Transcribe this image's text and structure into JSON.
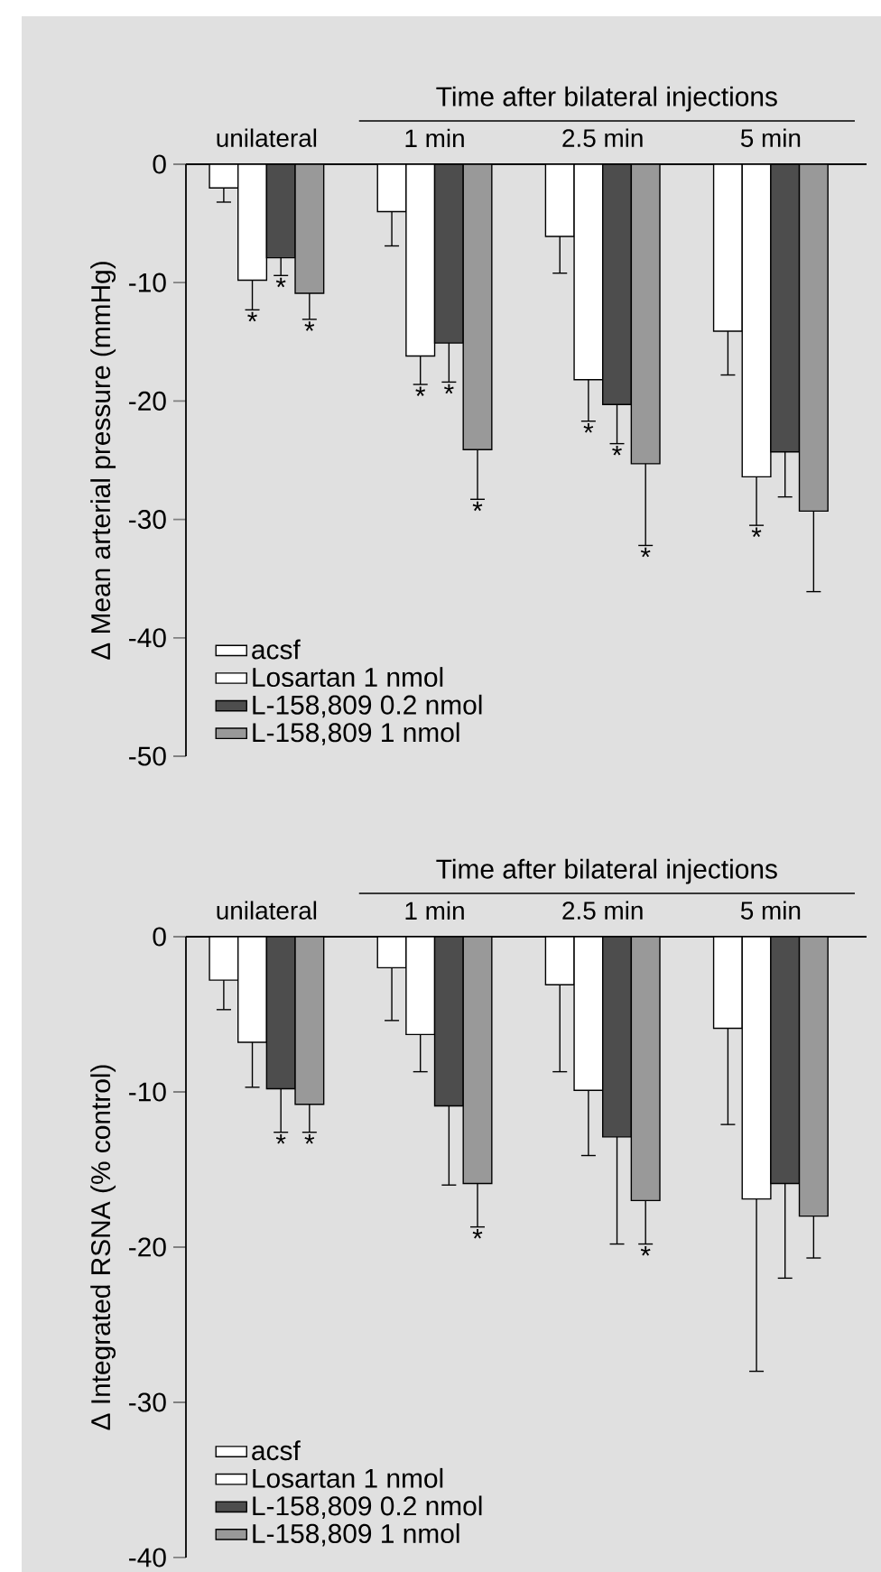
{
  "chart_data": [
    {
      "type": "bar",
      "ylabel": "Δ Mean arterial pressure (mmHg)",
      "annotations": [
        "Time after bilateral injections"
      ],
      "categories": [
        "unilateral",
        "1 min",
        "2.5 min",
        "5 min"
      ],
      "series": [
        {
          "name": "acsf",
          "color": "#ffffff",
          "values": [
            -2.0,
            -4.0,
            -6.1,
            -14.1
          ],
          "errors": [
            [
              -3.2,
              -2.0
            ],
            [
              -6.9,
              -4.0
            ],
            [
              -9.2,
              -6.1
            ],
            [
              -17.8,
              -14.1
            ]
          ]
        },
        {
          "name": "Losartan 1 nmol",
          "color": "#ffffff",
          "values": [
            -9.8,
            -16.2,
            -18.2,
            -26.4
          ],
          "errors": [
            [
              -12.3,
              -9.8
            ],
            [
              -18.6,
              -16.2
            ],
            [
              -21.7,
              -18.2
            ],
            [
              -30.5,
              -26.4
            ]
          ],
          "value_labels": [
            "*",
            "*",
            "*",
            "*"
          ]
        },
        {
          "name": "L-158,809 0.2 nmol",
          "color": "#4d4d4d",
          "values": [
            -7.9,
            -15.1,
            -20.3,
            -24.3
          ],
          "errors": [
            [
              -9.4,
              -7.9
            ],
            [
              -18.4,
              -15.1
            ],
            [
              -23.6,
              -20.3
            ],
            [
              -28.1,
              -24.3
            ]
          ],
          "value_labels": [
            "*",
            "*",
            "*",
            null
          ]
        },
        {
          "name": "L-158,809 1 nmol",
          "color": "#999999",
          "values": [
            -10.9,
            -24.1,
            -25.3,
            -29.3
          ],
          "errors": [
            [
              -13.1,
              -10.9
            ],
            [
              -28.3,
              -24.1
            ],
            [
              -32.2,
              -25.3
            ],
            [
              -36.1,
              -29.3
            ]
          ],
          "value_labels": [
            "*",
            "*",
            "*",
            null
          ]
        }
      ],
      "ylim": [
        -50,
        0
      ],
      "yticks": [
        -50,
        -40,
        -30,
        -20,
        -10,
        0
      ],
      "legend": "bottom left"
    },
    {
      "type": "bar",
      "ylabel": "Δ Integrated RSNA (% control)",
      "annotations": [
        "Time after bilateral injections"
      ],
      "categories": [
        "unilateral",
        "1 min",
        "2.5 min",
        "5 min"
      ],
      "series": [
        {
          "name": "acsf",
          "color": "#ffffff",
          "values": [
            -2.8,
            -2.0,
            -3.1,
            -5.9
          ],
          "errors": [
            [
              -4.7,
              -2.8
            ],
            [
              -5.4,
              -2.0
            ],
            [
              -8.7,
              -3.1
            ],
            [
              -12.1,
              -5.9
            ]
          ]
        },
        {
          "name": "Losartan 1 nmol",
          "color": "#ffffff",
          "values": [
            -6.8,
            -6.3,
            -9.9,
            -16.9
          ],
          "errors": [
            [
              -9.7,
              -6.8
            ],
            [
              -8.7,
              -6.3
            ],
            [
              -14.1,
              -9.9
            ],
            [
              -28.0,
              -16.9
            ]
          ]
        },
        {
          "name": "L-158,809 0.2 nmol",
          "color": "#4d4d4d",
          "values": [
            -9.8,
            -10.9,
            -12.9,
            -15.9
          ],
          "errors": [
            [
              -12.6,
              -9.8
            ],
            [
              -16.0,
              -10.9
            ],
            [
              -19.8,
              -12.9
            ],
            [
              -22.0,
              -15.9
            ]
          ],
          "value_labels": [
            "*",
            null,
            null,
            null
          ]
        },
        {
          "name": "L-158,809 1 nmol",
          "color": "#999999",
          "values": [
            -10.8,
            -15.9,
            -17.0,
            -18.0
          ],
          "errors": [
            [
              -12.6,
              -10.8
            ],
            [
              -18.7,
              -15.9
            ],
            [
              -19.8,
              -17.0
            ],
            [
              -20.7,
              -18.0
            ]
          ],
          "value_labels": [
            "*",
            "*",
            "*",
            null
          ]
        }
      ],
      "ylim": [
        -40,
        0
      ],
      "yticks": [
        -40,
        -30,
        -20,
        -10,
        0
      ],
      "legend": "bottom left"
    }
  ]
}
